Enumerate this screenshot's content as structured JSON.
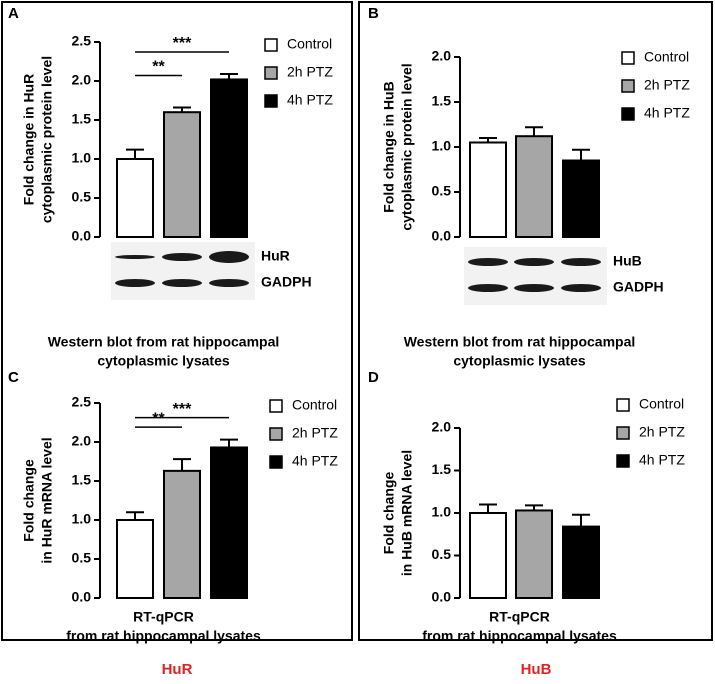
{
  "chart_data": [
    {
      "type": "bar",
      "panel": "A",
      "ylabel": [
        "Fold change in HuR",
        "cytoplasmic protein level"
      ],
      "series": [
        {
          "name": "Control",
          "color": "#ffffff",
          "values": [
            1.0
          ],
          "errors": [
            0.12
          ]
        },
        {
          "name": "2h PTZ",
          "color": "#a6a6a6",
          "values": [
            1.6
          ],
          "errors": [
            0.06
          ]
        },
        {
          "name": "4h PTZ",
          "color": "#000000",
          "values": [
            2.02
          ],
          "errors": [
            0.07
          ]
        }
      ],
      "ylim": [
        0,
        2.5
      ],
      "yticks": [
        {
          "value": 0,
          "label": "0.0"
        },
        {
          "value": 0.5,
          "label": "0.5"
        },
        {
          "value": 1,
          "label": "1.0"
        },
        {
          "value": 1.5,
          "label": "1.5"
        },
        {
          "value": 2,
          "label": "2.0"
        },
        {
          "value": 2.5,
          "label": "2.5"
        }
      ],
      "significance": [
        {
          "text": "***",
          "pair": [
            0,
            2
          ]
        },
        {
          "text": "**",
          "pair": [
            0,
            1
          ]
        }
      ],
      "blot_labels": [
        "HuR",
        "GADPH"
      ],
      "caption": [
        "Western blot from rat hippocampal",
        "cytoplasmic lysates"
      ]
    },
    {
      "type": "bar",
      "panel": "B",
      "ylabel": [
        "Fold change in HuB",
        "cytoplasmic protein level"
      ],
      "series": [
        {
          "name": "Control",
          "color": "#ffffff",
          "values": [
            1.05
          ],
          "errors": [
            0.05
          ]
        },
        {
          "name": "2h PTZ",
          "color": "#a6a6a6",
          "values": [
            1.12
          ],
          "errors": [
            0.1
          ]
        },
        {
          "name": "4h PTZ",
          "color": "#000000",
          "values": [
            0.85
          ],
          "errors": [
            0.12
          ]
        }
      ],
      "ylim": [
        0,
        2
      ],
      "yticks": [
        {
          "value": 0,
          "label": "0.0"
        },
        {
          "value": 0.5,
          "label": "0.5"
        },
        {
          "value": 1,
          "label": "1.0"
        },
        {
          "value": 1.5,
          "label": "1.5"
        },
        {
          "value": 2,
          "label": "2.0"
        }
      ],
      "significance": [],
      "blot_labels": [
        "HuB",
        "GADPH"
      ],
      "caption": [
        "Western blot from rat hippocampal",
        "cytoplasmic lysates"
      ]
    },
    {
      "type": "bar",
      "panel": "C",
      "ylabel": [
        "Fold change",
        "in HuR mRNA level"
      ],
      "series": [
        {
          "name": "Control",
          "color": "#ffffff",
          "values": [
            1.0
          ],
          "errors": [
            0.1
          ]
        },
        {
          "name": "2h PTZ",
          "color": "#a6a6a6",
          "values": [
            1.63
          ],
          "errors": [
            0.15
          ]
        },
        {
          "name": "4h PTZ",
          "color": "#000000",
          "values": [
            1.93
          ],
          "errors": [
            0.1
          ]
        }
      ],
      "ylim": [
        0,
        2.5
      ],
      "yticks": [
        {
          "value": 0,
          "label": "0.0"
        },
        {
          "value": 0.5,
          "label": "0.5"
        },
        {
          "value": 1,
          "label": "1.0"
        },
        {
          "value": 1.5,
          "label": "1.5"
        },
        {
          "value": 2,
          "label": "2.0"
        },
        {
          "value": 2.5,
          "label": "2.5"
        }
      ],
      "significance": [
        {
          "text": "***",
          "pair": [
            0,
            2
          ]
        },
        {
          "text": "**",
          "pair": [
            0,
            1
          ]
        }
      ],
      "blot_labels": [],
      "caption": [
        "RT-qPCR",
        "from rat hippocampal lysates"
      ]
    },
    {
      "type": "bar",
      "panel": "D",
      "ylabel": [
        "Fold change",
        "in HuB mRNA level"
      ],
      "series": [
        {
          "name": "Control",
          "color": "#ffffff",
          "values": [
            1.0
          ],
          "errors": [
            0.1
          ]
        },
        {
          "name": "2h PTZ",
          "color": "#a6a6a6",
          "values": [
            1.03
          ],
          "errors": [
            0.06
          ]
        },
        {
          "name": "4h PTZ",
          "color": "#000000",
          "values": [
            0.84
          ],
          "errors": [
            0.14
          ]
        }
      ],
      "ylim": [
        0,
        2
      ],
      "yticks": [
        {
          "value": 0,
          "label": "0.0"
        },
        {
          "value": 0.5,
          "label": "0.5"
        },
        {
          "value": 1,
          "label": "1.0"
        },
        {
          "value": 1.5,
          "label": "1.5"
        },
        {
          "value": 2,
          "label": "2.0"
        }
      ],
      "significance": [],
      "blot_labels": [],
      "caption": [
        "RT-qPCR",
        "from rat hippocampal lysates"
      ]
    }
  ],
  "group_labels": [
    "HuR",
    "HuB"
  ]
}
